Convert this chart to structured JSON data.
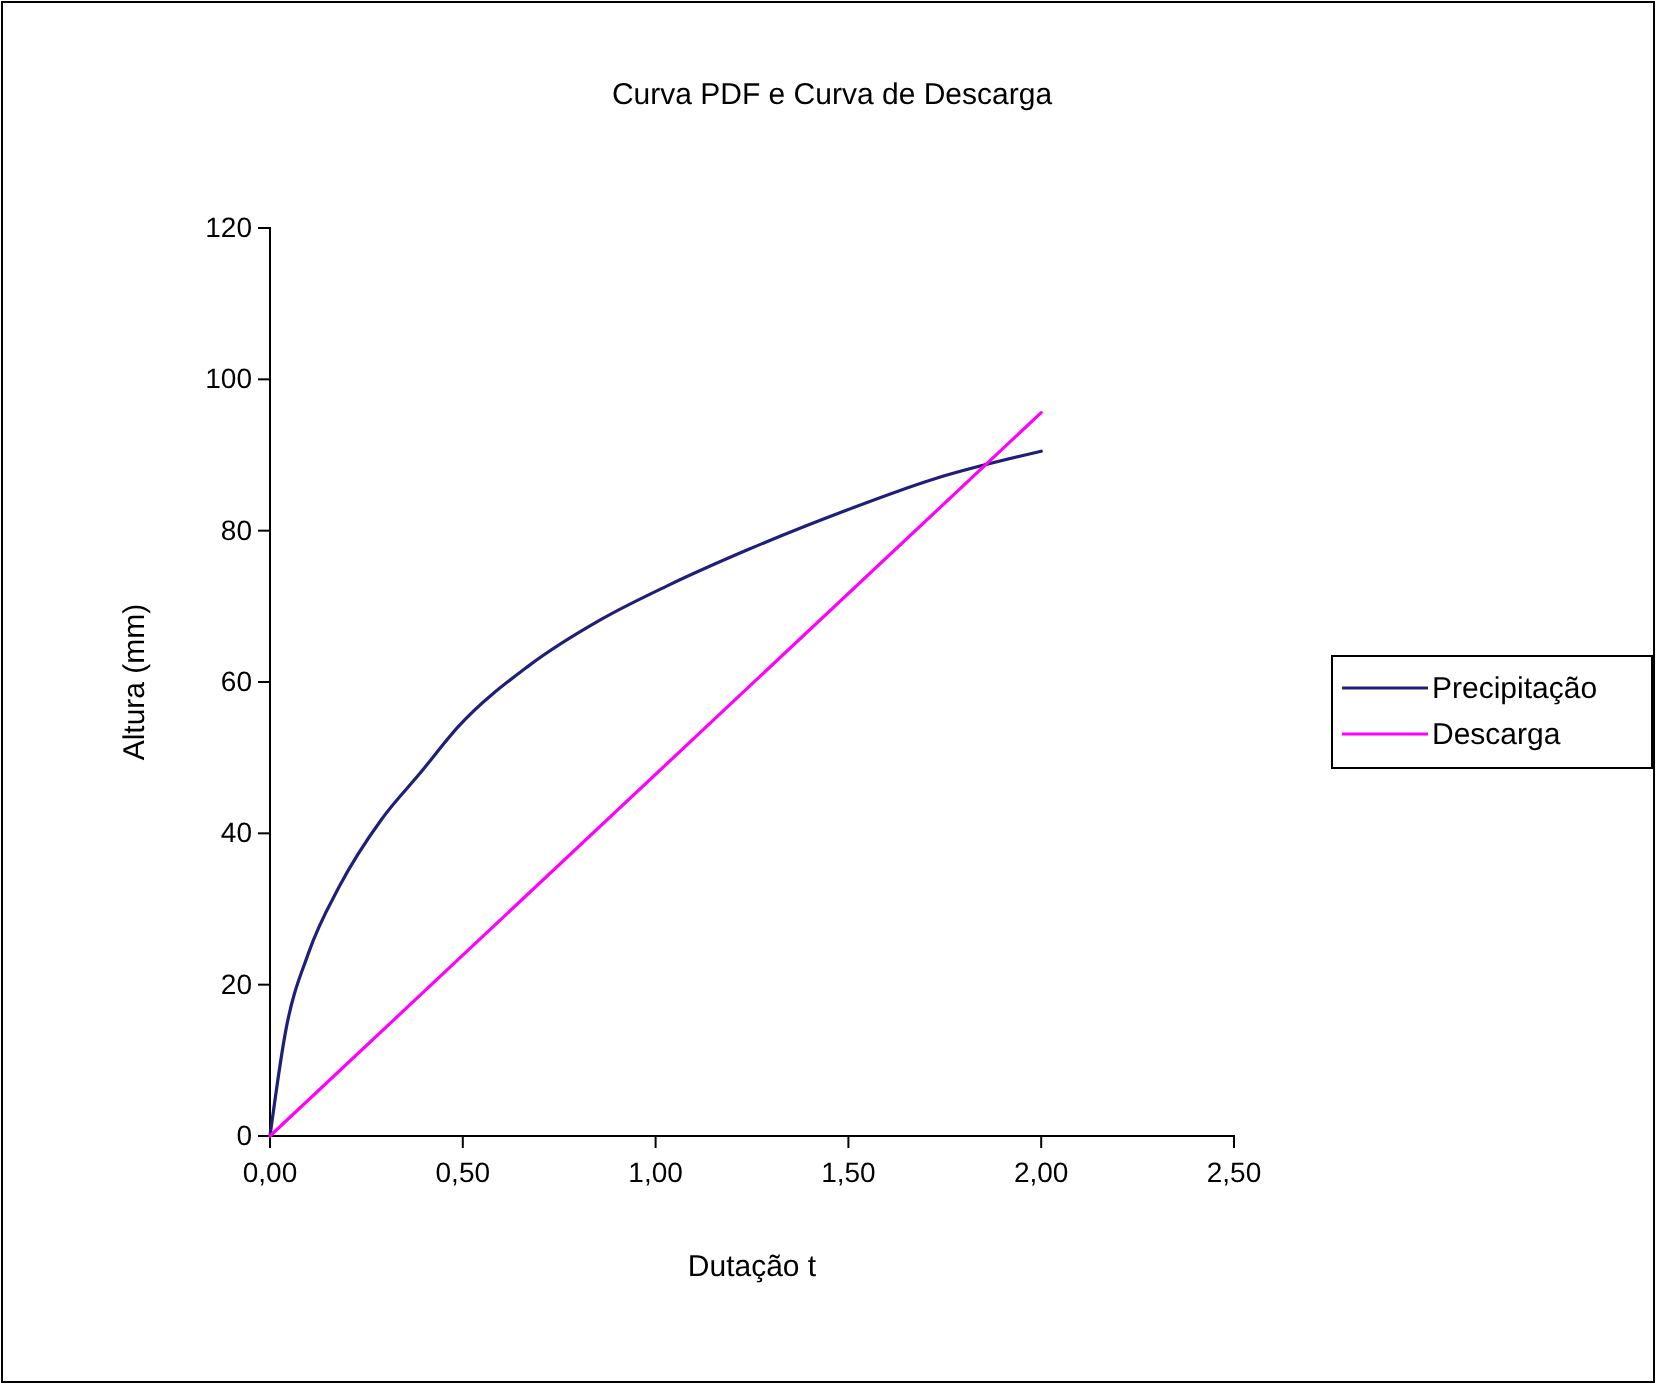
{
  "chart_data": {
    "type": "line",
    "title": "Curva PDF e Curva de Descarga",
    "xlabel": "Dutação t",
    "ylabel": "Altura (mm)",
    "xlim": [
      0,
      2.5
    ],
    "xticks": [
      {
        "value": 0,
        "label": "0,00"
      },
      {
        "value": 0.5,
        "label": "0,50"
      },
      {
        "value": 1,
        "label": "1,00"
      },
      {
        "value": 1.5,
        "label": "1,50"
      },
      {
        "value": 2,
        "label": "2,00"
      },
      {
        "value": 2.5,
        "label": "2,50"
      }
    ],
    "ylim": [
      0,
      120
    ],
    "yticks": [
      0,
      20,
      40,
      60,
      80,
      100,
      120
    ],
    "grid": false,
    "legend": "right",
    "marker": "none",
    "line_style": "solid",
    "series": [
      {
        "name": "Precipitação",
        "color": "#1f1f7a",
        "x": [
          0,
          0.04,
          0.1,
          0.18,
          0.29,
          0.39,
          0.49,
          0.67,
          0.86,
          1.03,
          1.24,
          1.5,
          1.72,
          2.0
        ],
        "values": [
          0,
          13.7,
          24.2,
          33,
          41.9,
          48,
          54.2,
          62.1,
          68.3,
          72.7,
          77.5,
          82.8,
          86.8,
          90.5
        ]
      },
      {
        "name": "Descarga",
        "color": "#ff00ff",
        "x": [
          0,
          2.0
        ],
        "values": [
          0,
          95.6
        ]
      }
    ]
  }
}
